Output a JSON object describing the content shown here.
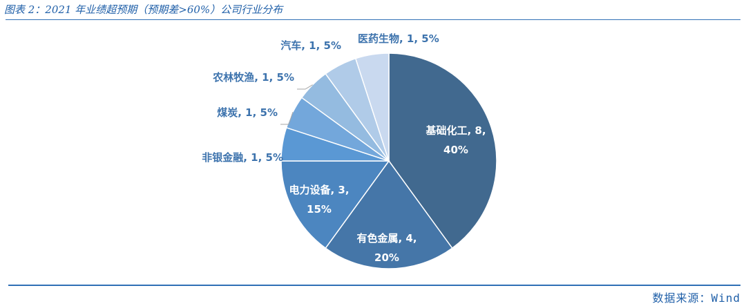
{
  "title": "图表 2：2021 年业绩超预期（预期差>60%）公司行业分布",
  "source": "数据来源：Wind",
  "chart_data": {
    "type": "pie",
    "title": "图表 2：2021 年业绩超预期（预期差>60%）公司行业分布",
    "slices": [
      {
        "name": "基础化工",
        "value": 8,
        "percent": "40%",
        "color": "#41698f"
      },
      {
        "name": "有色金属",
        "value": 4,
        "percent": "20%",
        "color": "#4576a8"
      },
      {
        "name": "电力设备",
        "value": 3,
        "percent": "15%",
        "color": "#4c86c0"
      },
      {
        "name": "非银金融",
        "value": 1,
        "percent": "5%",
        "color": "#5a98d4"
      },
      {
        "name": "煤炭",
        "value": 1,
        "percent": "5%",
        "color": "#73a7db"
      },
      {
        "name": "农林牧渔",
        "value": 1,
        "percent": "5%",
        "color": "#94bbe0"
      },
      {
        "name": "汽车",
        "value": 1,
        "percent": "5%",
        "color": "#b0cbe8"
      },
      {
        "name": "医药生物",
        "value": 1,
        "percent": "5%",
        "color": "#c9d9ef"
      }
    ],
    "label_format": "{name}, {value}, {percent}",
    "label_position": "inside for large slices, outside with leader lines for small slices"
  }
}
